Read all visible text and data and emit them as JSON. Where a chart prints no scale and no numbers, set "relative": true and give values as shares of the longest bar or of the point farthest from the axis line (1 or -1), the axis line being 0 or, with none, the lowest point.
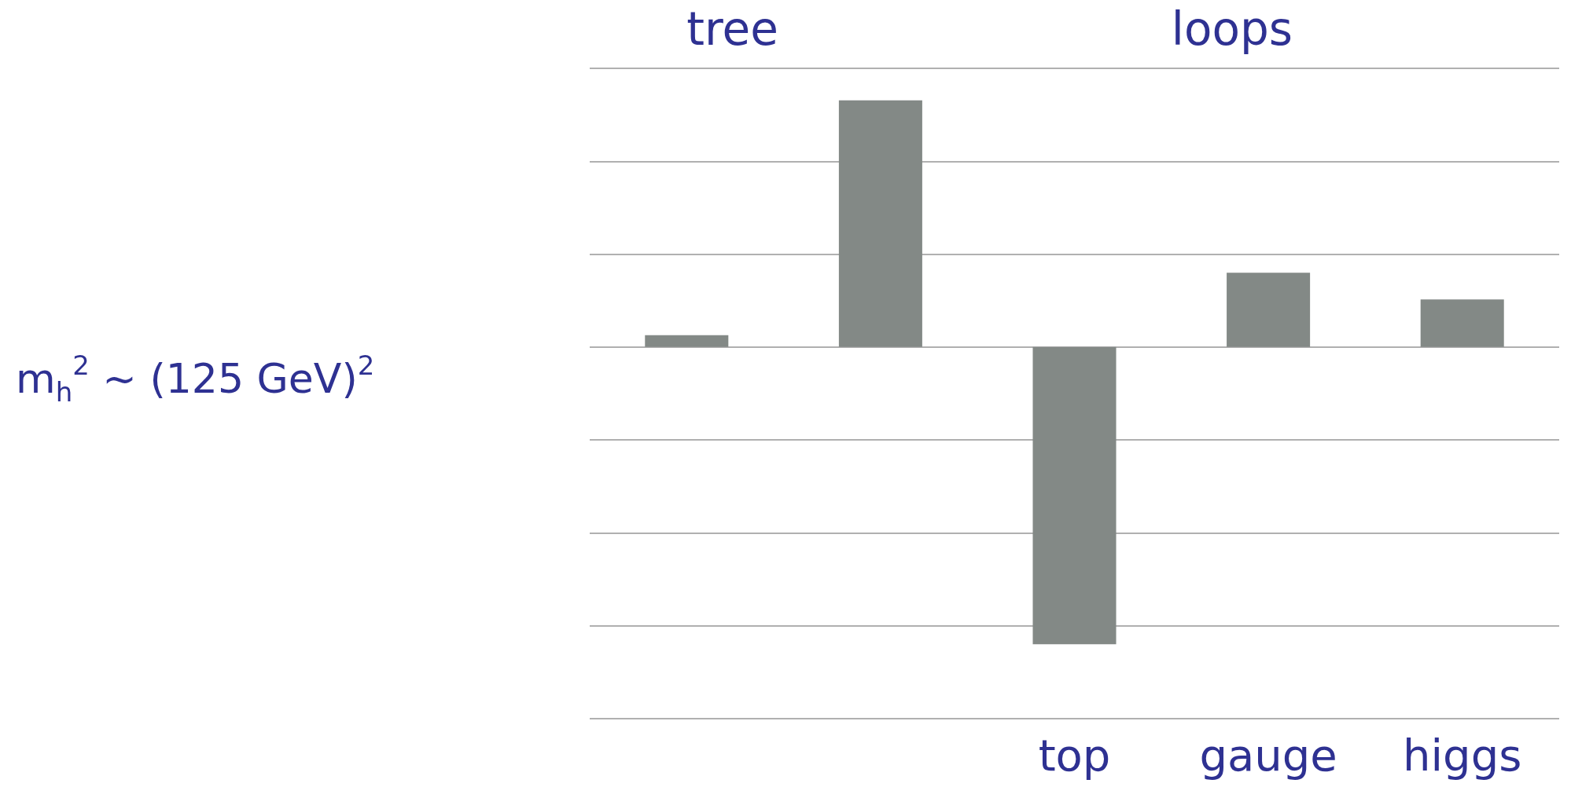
{
  "chart_data": {
    "type": "bar",
    "relative": true,
    "categories": [
      null,
      null,
      "top",
      "gauge",
      "higgs"
    ],
    "values": [
      0.04,
      0.83,
      -1,
      0.25,
      0.16
    ],
    "color": "#838986",
    "grid": "y",
    "annotations": [
      "tree",
      "loops",
      "m$_{h}$$^{2}$ ~ (125 GeV)$^{2}$"
    ]
  }
}
